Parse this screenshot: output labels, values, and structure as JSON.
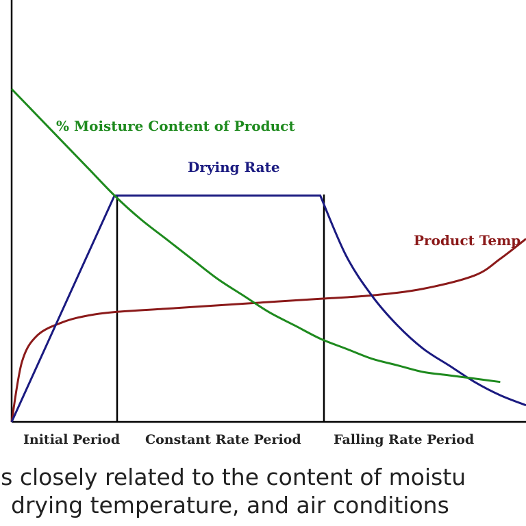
{
  "chart_data": {
    "type": "line",
    "title": "",
    "xlabel": "",
    "ylabel": "",
    "periods": [
      "Initial Period",
      "Constant Rate Period",
      "Falling Rate Period"
    ],
    "series": [
      {
        "name": "% Moisture Content of Product",
        "color": "#1e8a1e",
        "points": [
          [
            0,
            100
          ],
          [
            0.05,
            92
          ],
          [
            0.1,
            84
          ],
          [
            0.15,
            76
          ],
          [
            0.2,
            68
          ],
          [
            0.25,
            61
          ],
          [
            0.3,
            55
          ],
          [
            0.35,
            49
          ],
          [
            0.4,
            43
          ],
          [
            0.45,
            38
          ],
          [
            0.5,
            33
          ],
          [
            0.55,
            29
          ],
          [
            0.6,
            25
          ],
          [
            0.65,
            22
          ],
          [
            0.7,
            19
          ],
          [
            0.75,
            17
          ],
          [
            0.8,
            15
          ],
          [
            0.85,
            14
          ],
          [
            0.9,
            13
          ],
          [
            0.95,
            12
          ]
        ]
      },
      {
        "name": "Drying Rate",
        "color": "#1a1a80",
        "points": [
          [
            0,
            0
          ],
          [
            0.2,
            68
          ],
          [
            0.6,
            68
          ],
          [
            0.65,
            50
          ],
          [
            0.7,
            38
          ],
          [
            0.75,
            29
          ],
          [
            0.8,
            22
          ],
          [
            0.85,
            17
          ],
          [
            0.9,
            12
          ],
          [
            0.95,
            8
          ],
          [
            1.0,
            5
          ]
        ]
      },
      {
        "name": "Product Temp",
        "color": "#8b1a1a",
        "points": [
          [
            0,
            0
          ],
          [
            0.02,
            18
          ],
          [
            0.05,
            26
          ],
          [
            0.1,
            30
          ],
          [
            0.15,
            32
          ],
          [
            0.2,
            33
          ],
          [
            0.3,
            34
          ],
          [
            0.4,
            35
          ],
          [
            0.5,
            36
          ],
          [
            0.6,
            37
          ],
          [
            0.7,
            38
          ],
          [
            0.8,
            40
          ],
          [
            0.9,
            44
          ],
          [
            0.95,
            49
          ],
          [
            1.0,
            55
          ]
        ]
      }
    ],
    "period_boundaries": [
      0.2,
      0.6
    ]
  },
  "captions": [
    "is closely related to the content of moistu",
    "drying temperature, and air conditions"
  ]
}
